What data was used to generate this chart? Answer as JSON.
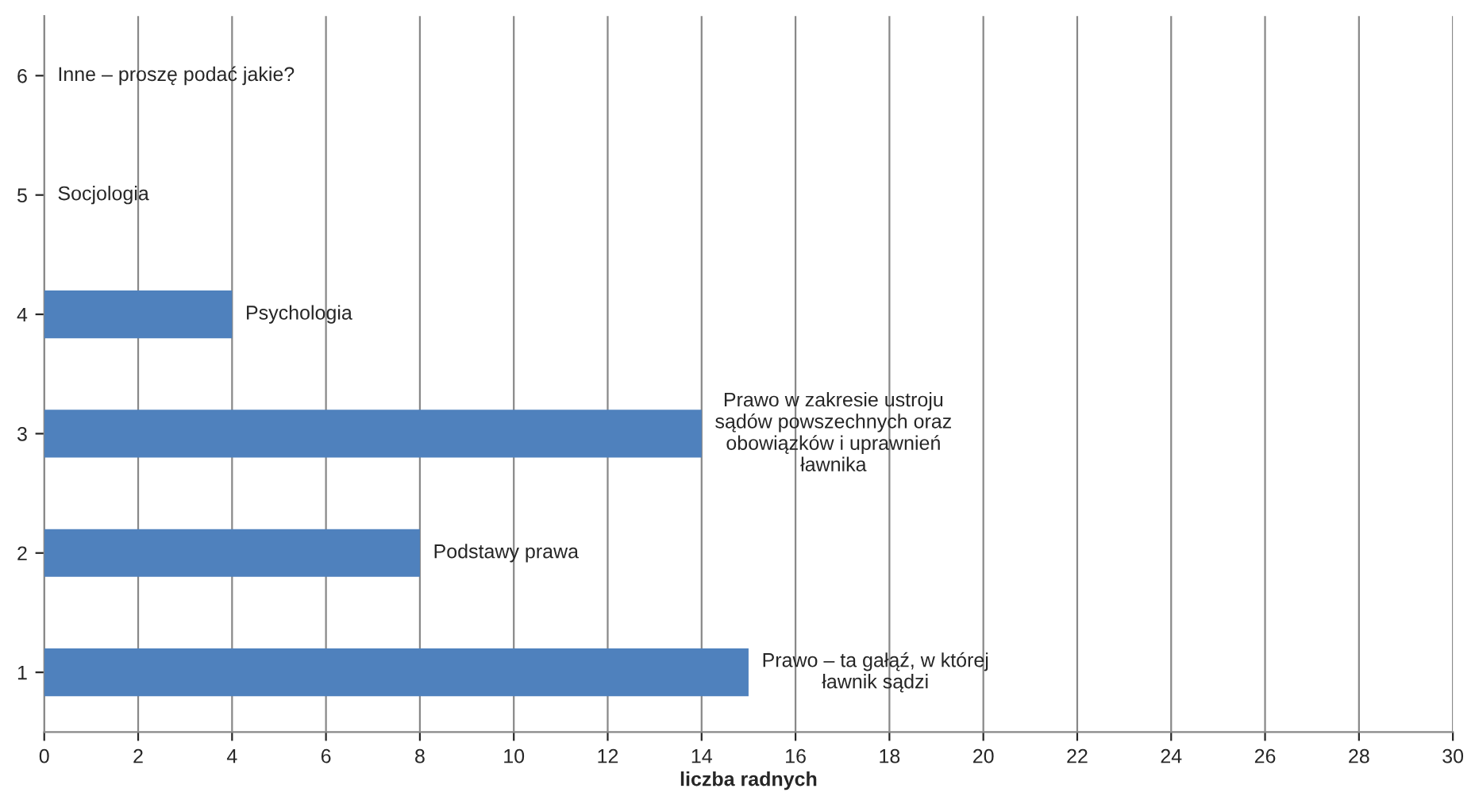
{
  "chart_data": {
    "type": "bar",
    "orientation": "horizontal",
    "xlabel": "liczba radnych",
    "categories": [
      "6",
      "5",
      "4",
      "3",
      "2",
      "1"
    ],
    "values": [
      0,
      0,
      4,
      14,
      8,
      15
    ],
    "color": "#4f81bd",
    "xlim": [
      0,
      30
    ],
    "xticks": [
      0,
      2,
      4,
      6,
      8,
      10,
      12,
      14,
      16,
      18,
      20,
      22,
      24,
      26,
      28,
      30
    ],
    "grid": "x",
    "annotations": [
      {
        "text": "Inne – proszę podać jakie?",
        "x": 0,
        "y": "6"
      },
      {
        "text": "Socjologia",
        "x": 0,
        "y": "5"
      },
      {
        "text": "Psychologia",
        "x": 4,
        "y": "4"
      },
      {
        "text": "Prawo w zakresie ustroju\nsądów powszechnych oraz\nobowiązków i uprawnień\nławnika",
        "x": 14,
        "y": "3"
      },
      {
        "text": "Podstawy prawa",
        "x": 8,
        "y": "2"
      },
      {
        "text": "Prawo – ta gałąź, w której\nławnik sądzi",
        "x": 15,
        "y": "1"
      }
    ]
  }
}
